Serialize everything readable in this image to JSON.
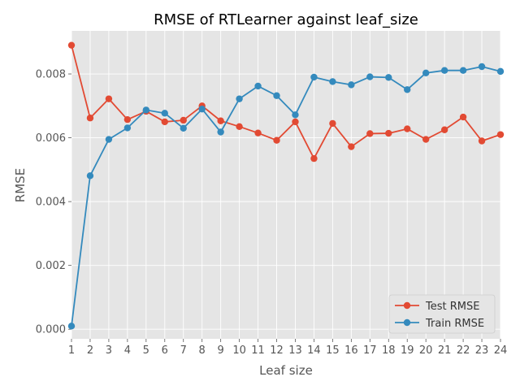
{
  "chart_data": {
    "type": "line",
    "title": "RMSE of RTLearner against leaf_size",
    "xlabel": "Leaf size",
    "ylabel": "RMSE",
    "x": [
      1,
      2,
      3,
      4,
      5,
      6,
      7,
      8,
      9,
      10,
      11,
      12,
      13,
      14,
      15,
      16,
      17,
      18,
      19,
      20,
      21,
      22,
      23,
      24
    ],
    "xlim": [
      1,
      24
    ],
    "ylim": [
      -0.0003,
      0.00935
    ],
    "yticks": [
      "0.000",
      "0.002",
      "0.004",
      "0.006",
      "0.008"
    ],
    "ytick_values": [
      0,
      0.002,
      0.004,
      0.006,
      0.008
    ],
    "grid": true,
    "legend_position": "lower-right",
    "series": [
      {
        "name": "Test RMSE",
        "color": "#E24A33",
        "values": [
          0.0089,
          0.00662,
          0.00722,
          0.00657,
          0.00683,
          0.0065,
          0.00655,
          0.007,
          0.00653,
          0.00635,
          0.00615,
          0.00592,
          0.0065,
          0.00535,
          0.00645,
          0.00572,
          0.00613,
          0.00614,
          0.00628,
          0.00595,
          0.00625,
          0.00665,
          0.0059,
          0.0061
        ]
      },
      {
        "name": "Train RMSE",
        "color": "#348ABD",
        "values": [
          0.0001,
          0.00481,
          0.00595,
          0.00631,
          0.00687,
          0.00677,
          0.0063,
          0.0069,
          0.00618,
          0.00722,
          0.00762,
          0.00732,
          0.00672,
          0.0079,
          0.00776,
          0.00766,
          0.00791,
          0.00789,
          0.00751,
          0.00803,
          0.00811,
          0.00811,
          0.00823,
          0.00808
        ]
      }
    ]
  }
}
